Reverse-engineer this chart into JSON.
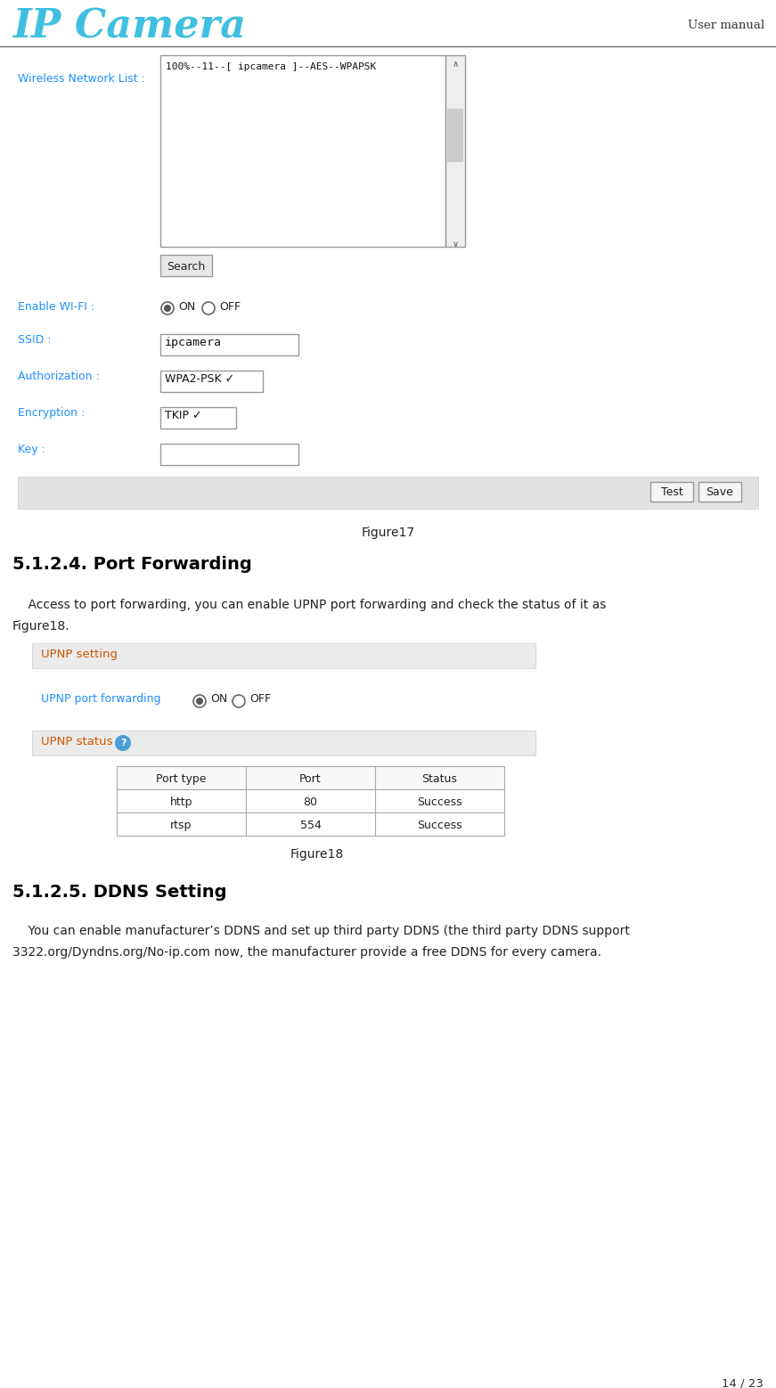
{
  "bg_color": "#ffffff",
  "logo_text": "IP Camera",
  "logo_color": "#40c0e0",
  "user_manual_text": "User manual",
  "page_number": "14 / 23",
  "figure17_label": "Figure17",
  "figure18_label": "Figure18",
  "section_title": "5.1.2.4. Port Forwarding",
  "section_body_line1": "    Access to port forwarding, you can enable UPNP port forwarding and check the status of it as",
  "section_body_line2": "Figure18.",
  "upnp_setting_label": "UPNP setting",
  "upnp_pf_label": "UPNP port forwarding",
  "upnp_status_label": "UPNP status",
  "table_headers": [
    "Port type",
    "Port",
    "Status"
  ],
  "table_rows": [
    [
      "http",
      "80",
      "Success"
    ],
    [
      "rtsp",
      "554",
      "Success"
    ]
  ],
  "section2_title": "5.1.2.5. DDNS Setting",
  "section2_body_line1": "    You can enable manufacturer’s DDNS and set up third party DDNS (the third party DDNS support",
  "section2_body_line2": "3322.org/Dyndns.org/No-ip.com now, the manufacturer provide a free DDNS for every camera.",
  "wifi_list_label": "Wireless Network List :",
  "wifi_list_content": "100%--11--[ ipcamera ]--AES--WPAPSK",
  "search_btn": "Search",
  "enable_wifi_label": "Enable WI-FI :",
  "ssid_label": "SSID :",
  "ssid_value": "ipcamera",
  "auth_label": "Authorization :",
  "auth_value": "WPA2-PSK ✓",
  "enc_label": "Encryption :",
  "enc_value": "TKIP ✓",
  "key_label": "Key :",
  "test_btn": "Test",
  "save_btn": "Save",
  "label_color": "#1e90ff",
  "orange_color": "#cc5500",
  "section_bg": "#ebebeb",
  "table_border": "#aaaaaa",
  "header_line_color": "#666666"
}
